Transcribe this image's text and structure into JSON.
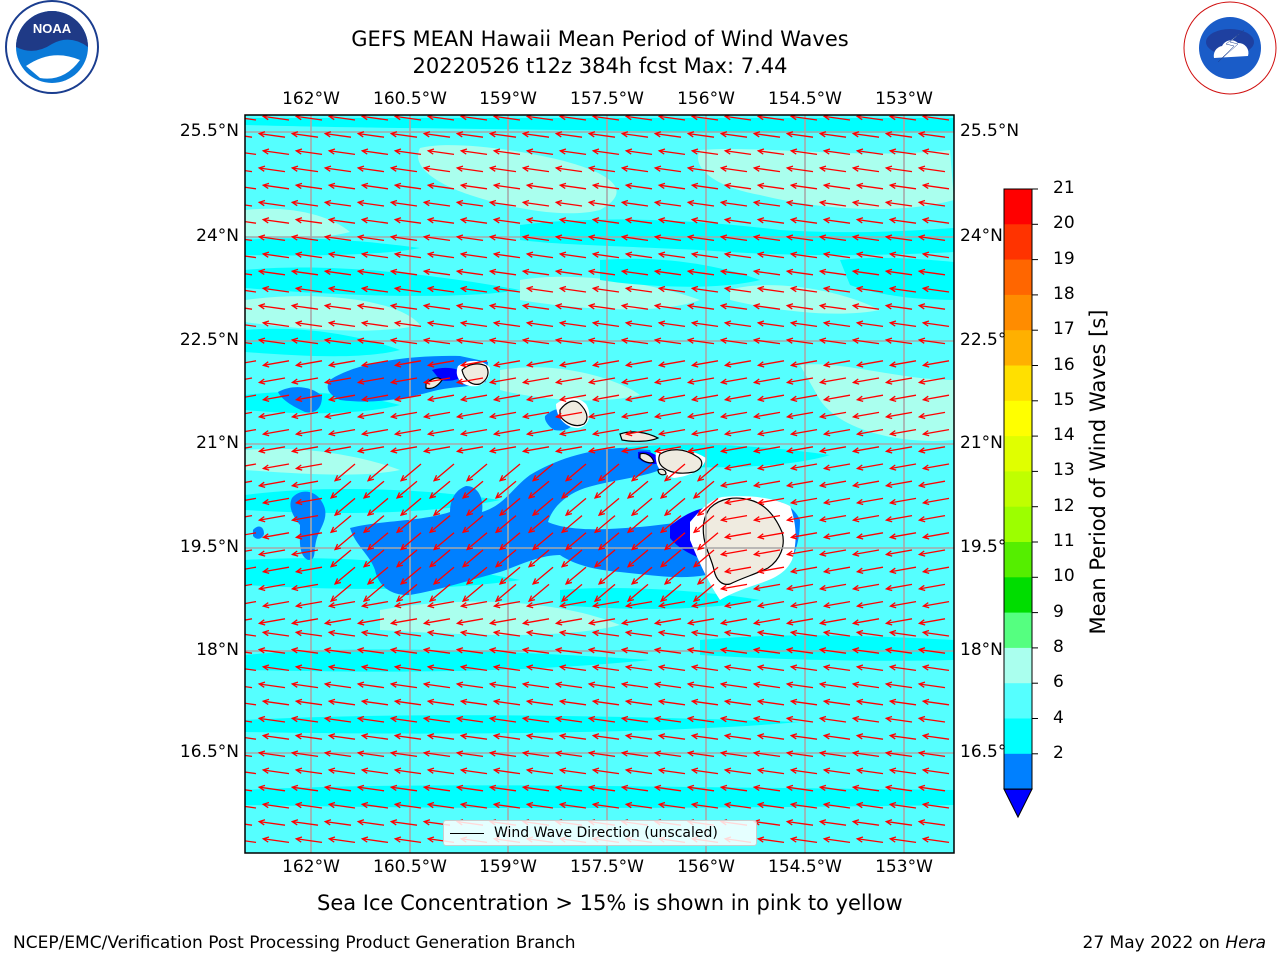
{
  "title": {
    "line1": "GEFS MEAN Hawaii Mean Period of Wind Waves",
    "line2": "20220526 t12z 384h fcst   Max: 7.44"
  },
  "logos": {
    "noaa_text": "NOAA",
    "noaa_ring": "NATIONAL OCEANIC AND ATMOSPHERIC ADMINISTRATION • U.S. DEPARTMENT OF COMMERCE",
    "nws_ring": "NATIONAL WEATHER SERVICE"
  },
  "map": {
    "lon_labels": [
      "162°W",
      "160.5°W",
      "159°W",
      "157.5°W",
      "156°W",
      "154.5°W",
      "153°W"
    ],
    "lat_labels_left": [
      "25.5°N",
      "24°N",
      "22.5°N",
      "21°N",
      "19.5°N",
      "18°N",
      "16.5°N"
    ],
    "lat_labels_right": [
      "25.5°N",
      "24°N",
      "22.5°",
      "21°N",
      "19.5°",
      "18°N",
      "16.5°"
    ],
    "legend_label": "Wind Wave Direction (unscaled)",
    "arrow_color": "#ff0000",
    "land_color": "#efebe0"
  },
  "colorbar": {
    "label": "Mean Period of Wind Waves [s]",
    "ticks": [
      "21",
      "20",
      "19",
      "18",
      "17",
      "16",
      "15",
      "14",
      "13",
      "12",
      "11",
      "10",
      "9",
      "8",
      "6",
      "4",
      "2"
    ],
    "colors": [
      "#ff0000",
      "#ff3300",
      "#ff6600",
      "#ff8c00",
      "#ffb000",
      "#ffe000",
      "#ffff00",
      "#e0ff00",
      "#c0ff00",
      "#9cff00",
      "#55ee00",
      "#00dd00",
      "#55ff80",
      "#aaffee",
      "#55ffff",
      "#00ffff",
      "#0080ff"
    ],
    "under_color": "#0000ff"
  },
  "notes": {
    "ice": "Sea Ice Concentration > 15% is shown in pink to yellow",
    "credit": "NCEP/EMC/Verification Post Processing Product Generation Branch",
    "date": "27 May 2022 on ",
    "machine": "Hera"
  }
}
